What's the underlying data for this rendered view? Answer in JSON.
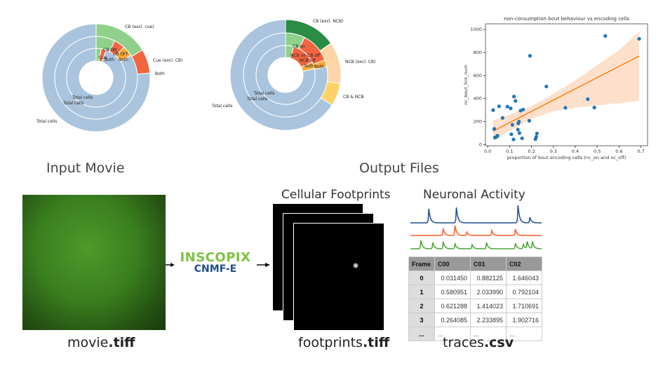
{
  "donut1": {
    "labels": {
      "outer_cb": "CB (excl. cue)",
      "outer_cue": "Cue (excl. CB)",
      "outer_both": "Both",
      "mid_on": "CB ON",
      "mid_off": "CB OFF",
      "mid_both": "Both",
      "inner_cue": "Cue",
      "inner_both": "Both",
      "total_outer": "Total cells",
      "total_mid": "Total cells",
      "total_inner": "Total cells"
    },
    "rings": [
      {
        "ring": "outer",
        "slices": [
          {
            "from": 0,
            "to": 59,
            "color": "#8fd18a"
          },
          {
            "from": 59,
            "to": 85,
            "color": "#f26541"
          },
          {
            "from": 85,
            "to": 360,
            "color": "#aac4de"
          }
        ]
      },
      {
        "ring": "middle",
        "slices": [
          {
            "from": 0,
            "to": 27,
            "color": "#8fd18a"
          },
          {
            "from": 27,
            "to": 42,
            "color": "#f26541"
          },
          {
            "from": 42,
            "to": 57,
            "color": "#fbaa36"
          },
          {
            "from": 57,
            "to": 360,
            "color": "#aac4de"
          }
        ]
      },
      {
        "ring": "inner",
        "slices": [
          {
            "from": 0,
            "to": 10,
            "color": "#8fd18a"
          },
          {
            "from": 10,
            "to": 20,
            "color": "#f26541"
          },
          {
            "from": 20,
            "to": 360,
            "color": "#aac4de"
          }
        ]
      }
    ]
  },
  "donut2": {
    "labels": {
      "outer_cb": "CB (excl. NCB)",
      "outer_ncb": "NCB (excl. CB)",
      "outer_both": "CB & NCB",
      "mid_on": "CB on",
      "mid_off": "CB off",
      "mid_both": "Both",
      "inner_on": "NCB on",
      "inner_off": "NCB off",
      "inner_both": "Both",
      "total_outer": "Total cells",
      "total_mid": "Total cells",
      "total_inner": "Total cells"
    },
    "rings": [
      {
        "ring": "outer",
        "slices": [
          {
            "from": 0,
            "to": 55,
            "color": "#2b8c45"
          },
          {
            "from": 55,
            "to": 99,
            "color": "#fdd5a6"
          },
          {
            "from": 99,
            "to": 123,
            "color": "#fed16a"
          },
          {
            "from": 123,
            "to": 360,
            "color": "#aac4de"
          }
        ]
      },
      {
        "ring": "middle",
        "slices": [
          {
            "from": 0,
            "to": 27,
            "color": "#8fd18a"
          },
          {
            "from": 27,
            "to": 69,
            "color": "#f26541"
          },
          {
            "from": 69,
            "to": 79,
            "color": "#fbaa36"
          },
          {
            "from": 79,
            "to": 360,
            "color": "#aac4de"
          }
        ]
      },
      {
        "ring": "inner",
        "slices": [
          {
            "from": 0,
            "to": 16,
            "color": "#8fd18a"
          },
          {
            "from": 16,
            "to": 64,
            "color": "#f26541"
          },
          {
            "from": 64,
            "to": 78,
            "color": "#fbaa36"
          },
          {
            "from": 78,
            "to": 360,
            "color": "#aac4de"
          }
        ]
      }
    ]
  },
  "chart_data": {
    "type": "scatter",
    "title": "non-consumption bout behaviour vs encoding cells",
    "xlabel": "proportion of bout encoding cells (nc_on and nc_off)",
    "ylabel": "nc_bout_lick_num",
    "xlim": [
      -0.01,
      0.73
    ],
    "ylim": [
      -10,
      1050
    ],
    "xticks": [
      "0.0",
      "0.1",
      "0.2",
      "0.3",
      "0.4",
      "0.5",
      "0.6",
      "0.7"
    ],
    "yticks": [
      "0",
      "200",
      "400",
      "600",
      "800",
      "1000"
    ],
    "points": [
      [
        0.025,
        300
      ],
      [
        0.03,
        137
      ],
      [
        0.033,
        62
      ],
      [
        0.038,
        65
      ],
      [
        0.042,
        70
      ],
      [
        0.045,
        78
      ],
      [
        0.052,
        333
      ],
      [
        0.068,
        232
      ],
      [
        0.09,
        330
      ],
      [
        0.105,
        315
      ],
      [
        0.108,
        90
      ],
      [
        0.113,
        172
      ],
      [
        0.118,
        45
      ],
      [
        0.12,
        418
      ],
      [
        0.127,
        380
      ],
      [
        0.138,
        130
      ],
      [
        0.14,
        185
      ],
      [
        0.143,
        200
      ],
      [
        0.145,
        100
      ],
      [
        0.15,
        295
      ],
      [
        0.157,
        55
      ],
      [
        0.162,
        305
      ],
      [
        0.19,
        207
      ],
      [
        0.193,
        772
      ],
      [
        0.218,
        48
      ],
      [
        0.222,
        68
      ],
      [
        0.225,
        97
      ],
      [
        0.268,
        505
      ],
      [
        0.355,
        320
      ],
      [
        0.457,
        395
      ],
      [
        0.487,
        322
      ],
      [
        0.537,
        945
      ],
      [
        0.692,
        920
      ]
    ],
    "fit": {
      "x": [
        0.025,
        0.692
      ],
      "y": [
        118,
        770
      ]
    },
    "band": {
      "x": [
        0.025,
        0.1,
        0.2,
        0.3,
        0.4,
        0.5,
        0.6,
        0.692
      ],
      "lower": [
        30,
        120,
        225,
        290,
        320,
        340,
        360,
        380
      ],
      "upper": [
        210,
        260,
        335,
        440,
        560,
        690,
        820,
        985
      ]
    },
    "point_color": "#1f77b4",
    "fit_color": "#ff7f0e",
    "band_color": "#fde0cc"
  },
  "sections": {
    "input": "Input Movie",
    "output": "Output Files"
  },
  "captions": {
    "movie_stem": "movie",
    "movie_ext": ".tiff",
    "footprints_stem": "footprints",
    "footprints_ext": ".tiff",
    "traces_stem": "traces",
    "traces_ext": ".csv"
  },
  "logo": {
    "brand": "INSCOPIX",
    "product": "CNMF-E"
  },
  "subtitles": {
    "footprints": "Cellular Footprints",
    "activity": "Neuronal Activity"
  },
  "traces_colors": [
    "#1f4e8c",
    "#ff5a26",
    "#4aa336"
  ],
  "table": {
    "headers": [
      "Frame",
      "C00",
      "C01",
      "C02"
    ],
    "rows": [
      [
        "0",
        "0.031450",
        "0.882125",
        "1.646043"
      ],
      [
        "1",
        "0.580951",
        "2.033990",
        "0.792104"
      ],
      [
        "2",
        "0.621288",
        "1.414023",
        "1.710691"
      ],
      [
        "3",
        "0.264085",
        "2.233895",
        "1.902716"
      ],
      [
        "...",
        "...",
        "...",
        "..."
      ]
    ]
  }
}
